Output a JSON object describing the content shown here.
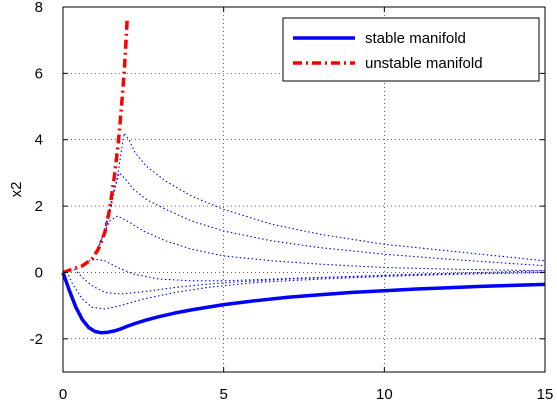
{
  "chart_data": {
    "type": "line",
    "title": "",
    "xlabel": "",
    "ylabel": "x2",
    "xlim": [
      0,
      15
    ],
    "ylim": [
      -3,
      8
    ],
    "xticks": [
      0,
      5,
      10,
      15
    ],
    "xtick_labels": [
      "0",
      "5",
      "10",
      "15"
    ],
    "yticks": [
      -2,
      0,
      2,
      4,
      6,
      8
    ],
    "ytick_labels": [
      "-2",
      "0",
      "2",
      "4",
      "6",
      "8"
    ],
    "grid": true,
    "legend_position": "top-right",
    "series": [
      {
        "name": "stable manifold",
        "style": "solid",
        "color": "#0000ff",
        "x": [
          0,
          0.2,
          0.4,
          0.6,
          0.8,
          1.0,
          1.2,
          1.4,
          1.6,
          1.8,
          2.0,
          2.3,
          2.6,
          3.0,
          3.5,
          4.0,
          5.0,
          6.0,
          7.0,
          8.0,
          9.0,
          10.0,
          11.0,
          12.0,
          13.0,
          14.0,
          15.0
        ],
        "y": [
          0,
          -0.55,
          -1.05,
          -1.42,
          -1.66,
          -1.78,
          -1.82,
          -1.8,
          -1.76,
          -1.7,
          -1.62,
          -1.52,
          -1.43,
          -1.33,
          -1.22,
          -1.13,
          -0.97,
          -0.85,
          -0.75,
          -0.67,
          -0.6,
          -0.55,
          -0.5,
          -0.46,
          -0.42,
          -0.39,
          -0.36
        ]
      },
      {
        "name": "unstable manifold",
        "style": "dashdot",
        "color": "#ff0000",
        "x": [
          0,
          0.3,
          0.6,
          0.9,
          1.1,
          1.3,
          1.45,
          1.6,
          1.72,
          1.82,
          1.9,
          1.95,
          2.0
        ],
        "y": [
          0,
          0.1,
          0.2,
          0.4,
          0.7,
          1.2,
          1.9,
          2.9,
          3.9,
          5.0,
          6.0,
          6.8,
          7.7
        ]
      }
    ],
    "trajectories": [
      {
        "x": [
          1.1,
          1.4,
          1.7,
          1.9,
          2.05,
          2.25,
          2.6,
          3.2,
          4.0,
          5.0,
          6.5,
          8.0,
          10.0,
          12.0,
          15.0
        ],
        "y": [
          0.7,
          1.55,
          2.9,
          4.2,
          4.0,
          3.6,
          3.2,
          2.75,
          2.3,
          1.9,
          1.45,
          1.15,
          0.85,
          0.65,
          0.35
        ]
      },
      {
        "x": [
          1.05,
          1.3,
          1.55,
          1.75,
          1.95,
          2.2,
          2.6,
          3.2,
          4.0,
          5.0,
          6.5,
          8.0,
          10.0,
          12.0,
          15.0
        ],
        "y": [
          0.6,
          1.3,
          2.35,
          3.0,
          2.8,
          2.5,
          2.2,
          1.9,
          1.55,
          1.25,
          0.95,
          0.75,
          0.55,
          0.4,
          0.2
        ]
      },
      {
        "x": [
          1.0,
          1.2,
          1.45,
          1.7,
          2.0,
          2.5,
          3.2,
          4.0,
          5.0,
          6.5,
          8.0,
          10.0,
          12.0,
          15.0
        ],
        "y": [
          0.55,
          1.0,
          1.55,
          1.7,
          1.55,
          1.25,
          0.95,
          0.7,
          0.5,
          0.35,
          0.25,
          0.15,
          0.1,
          0.05
        ]
      },
      {
        "x": [
          0.8,
          1.0,
          1.3,
          1.7,
          2.2,
          3.0,
          4.0,
          5.0,
          6.5,
          8.0,
          10.0,
          12.0,
          15.0
        ],
        "y": [
          0.35,
          0.4,
          0.35,
          0.15,
          -0.05,
          -0.2,
          -0.25,
          -0.25,
          -0.2,
          -0.15,
          -0.1,
          -0.05,
          0.0
        ]
      },
      {
        "x": [
          0.35,
          0.6,
          0.9,
          1.3,
          1.8,
          2.5,
          3.5,
          4.5,
          5.5,
          7.0,
          9.0,
          11.0,
          13.0,
          15.0
        ],
        "y": [
          0.1,
          -0.15,
          -0.4,
          -0.6,
          -0.65,
          -0.58,
          -0.45,
          -0.35,
          -0.28,
          -0.2,
          -0.12,
          -0.05,
          0.0,
          0.05
        ]
      },
      {
        "x": [
          0.12,
          0.3,
          0.6,
          0.9,
          1.3,
          1.8,
          2.5,
          3.5,
          4.5,
          6.0,
          8.0,
          10.0,
          12.0,
          15.0
        ],
        "y": [
          0.03,
          -0.35,
          -0.8,
          -1.05,
          -1.1,
          -1.0,
          -0.8,
          -0.6,
          -0.45,
          -0.3,
          -0.2,
          -0.12,
          -0.06,
          0.0
        ]
      }
    ]
  }
}
